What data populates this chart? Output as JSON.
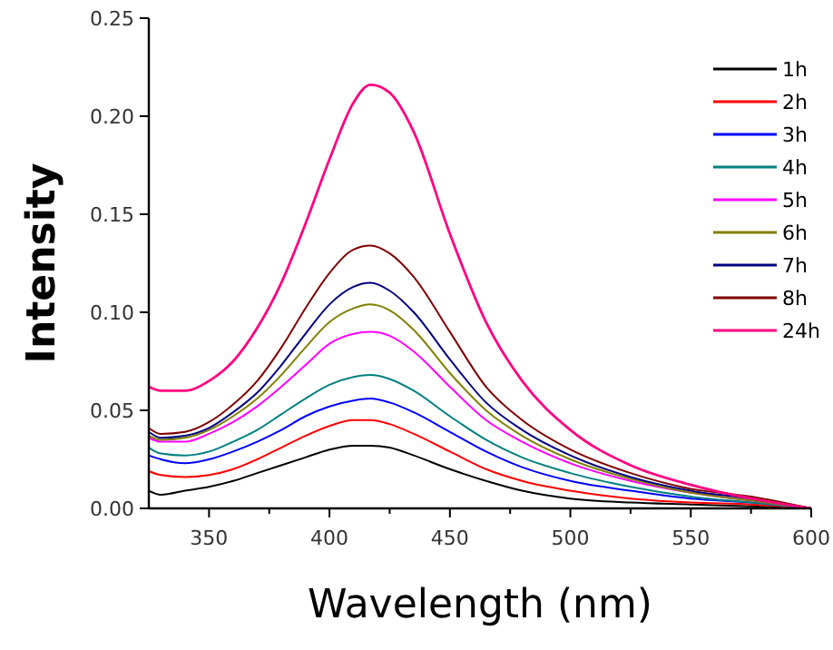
{
  "chart_data": {
    "type": "line",
    "xlabel": "Wavelength (nm)",
    "ylabel": "Intensity",
    "x": [
      325,
      330,
      340,
      350,
      360,
      370,
      380,
      390,
      400,
      410,
      417,
      425,
      435,
      450,
      465,
      480,
      500,
      525,
      550,
      575,
      600
    ],
    "xlim": [
      325,
      600
    ],
    "xticks": [
      350,
      {
        "value": 375,
        "label": null
      },
      400,
      {
        "value": 425,
        "label": null
      },
      450,
      {
        "value": 475,
        "label": null
      },
      500,
      {
        "value": 525,
        "label": null
      },
      550,
      {
        "value": 575,
        "label": null
      },
      600
    ],
    "ylim": [
      0,
      0.25
    ],
    "yticks": [
      {
        "value": 0,
        "label": "0.00"
      },
      0.05,
      {
        "value": 0.1,
        "label": "0.10"
      },
      0.15,
      {
        "value": 0.2,
        "label": "0.20"
      },
      0.25
    ],
    "legend": "top right",
    "grid": false,
    "marker": "none",
    "line_style": "solid",
    "series": [
      {
        "name": "1h",
        "color": "#000000",
        "values": [
          0.009,
          0.007,
          0.009,
          0.011,
          0.014,
          0.018,
          0.022,
          0.026,
          0.03,
          0.032,
          0.032,
          0.031,
          0.027,
          0.02,
          0.014,
          0.009,
          0.005,
          0.003,
          0.002,
          0.001,
          0
        ]
      },
      {
        "name": "2h",
        "color": "#ff0000",
        "values": [
          0.019,
          0.017,
          0.016,
          0.017,
          0.02,
          0.025,
          0.031,
          0.037,
          0.042,
          0.045,
          0.045,
          0.043,
          0.038,
          0.029,
          0.02,
          0.014,
          0.009,
          0.005,
          0.003,
          0.002,
          0
        ]
      },
      {
        "name": "3h",
        "color": "#0000ff",
        "values": [
          0.027,
          0.025,
          0.023,
          0.025,
          0.029,
          0.034,
          0.04,
          0.047,
          0.052,
          0.055,
          0.056,
          0.054,
          0.049,
          0.039,
          0.029,
          0.021,
          0.014,
          0.009,
          0.005,
          0.003,
          0
        ]
      },
      {
        "name": "4h",
        "color": "#008080",
        "values": [
          0.031,
          0.028,
          0.027,
          0.029,
          0.034,
          0.04,
          0.048,
          0.056,
          0.063,
          0.067,
          0.068,
          0.066,
          0.06,
          0.047,
          0.035,
          0.026,
          0.018,
          0.011,
          0.006,
          0.003,
          0
        ]
      },
      {
        "name": "5h",
        "color": "#ff00ff",
        "values": [
          0.036,
          0.034,
          0.034,
          0.038,
          0.044,
          0.052,
          0.062,
          0.073,
          0.084,
          0.089,
          0.09,
          0.088,
          0.08,
          0.062,
          0.045,
          0.034,
          0.023,
          0.014,
          0.008,
          0.004,
          0
        ]
      },
      {
        "name": "6h",
        "color": "#808000",
        "values": [
          0.037,
          0.035,
          0.036,
          0.04,
          0.047,
          0.056,
          0.068,
          0.082,
          0.095,
          0.102,
          0.104,
          0.101,
          0.091,
          0.069,
          0.05,
          0.037,
          0.025,
          0.015,
          0.008,
          0.004,
          0
        ]
      },
      {
        "name": "7h",
        "color": "#000080",
        "values": [
          0.039,
          0.036,
          0.037,
          0.041,
          0.049,
          0.059,
          0.073,
          0.089,
          0.104,
          0.113,
          0.115,
          0.111,
          0.1,
          0.076,
          0.054,
          0.04,
          0.027,
          0.016,
          0.009,
          0.005,
          0
        ]
      },
      {
        "name": "8h",
        "color": "#800000",
        "values": [
          0.041,
          0.038,
          0.039,
          0.044,
          0.053,
          0.065,
          0.082,
          0.102,
          0.12,
          0.132,
          0.134,
          0.13,
          0.118,
          0.09,
          0.062,
          0.045,
          0.03,
          0.018,
          0.01,
          0.006,
          0
        ]
      },
      {
        "name": "24h",
        "color": "#ff0080",
        "values": [
          0.062,
          0.06,
          0.06,
          0.065,
          0.075,
          0.092,
          0.115,
          0.145,
          0.178,
          0.207,
          0.216,
          0.212,
          0.192,
          0.14,
          0.095,
          0.065,
          0.04,
          0.022,
          0.012,
          0.005,
          0
        ]
      }
    ]
  }
}
